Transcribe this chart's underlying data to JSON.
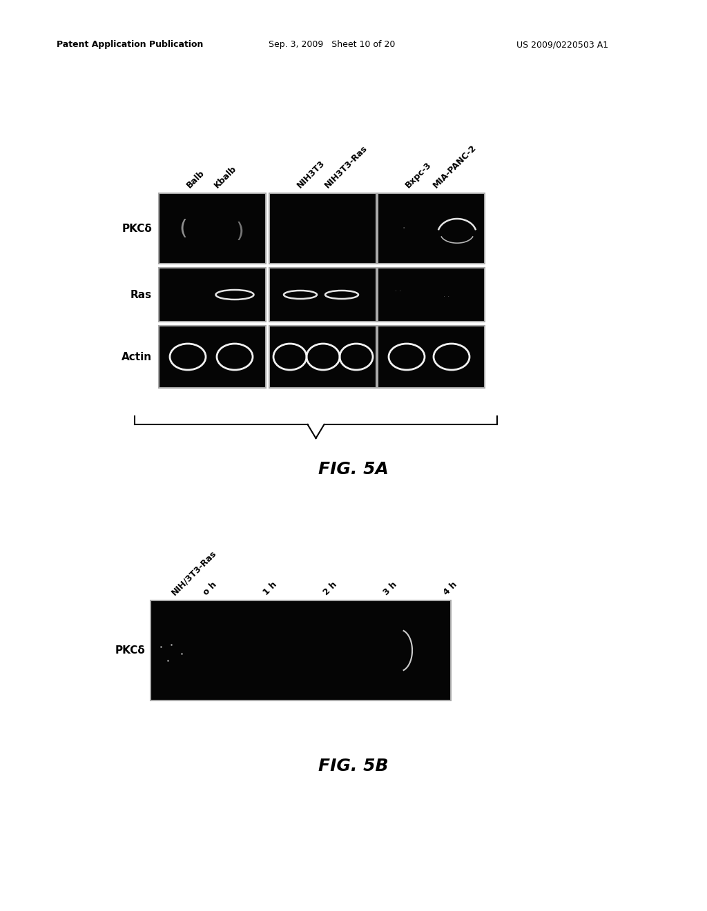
{
  "header_left": "Patent Application Publication",
  "header_mid": "Sep. 3, 2009   Sheet 10 of 20",
  "header_right": "US 2009/0220503 A1",
  "fig5a_col_labels": [
    "Balb",
    "Kbalb",
    "NIH3T3",
    "NIH3T3-Ras",
    "Bxpc-3",
    "MIA-PANC-2"
  ],
  "fig5a_row_labels": [
    "PKCδ",
    "Ras",
    "Actin"
  ],
  "fig5a_title": "FIG. 5A",
  "fig5b_col_labels": [
    "NIH/3T3-Ras",
    "o h",
    "1 h",
    "2 h",
    "3 h",
    "4 h"
  ],
  "fig5b_row_labels": [
    "PKCδ"
  ],
  "fig5b_title": "FIG. 5B",
  "bg_color": "#ffffff",
  "box_bg": "#050505",
  "box_border": "#aaaaaa",
  "text_color": "#000000"
}
